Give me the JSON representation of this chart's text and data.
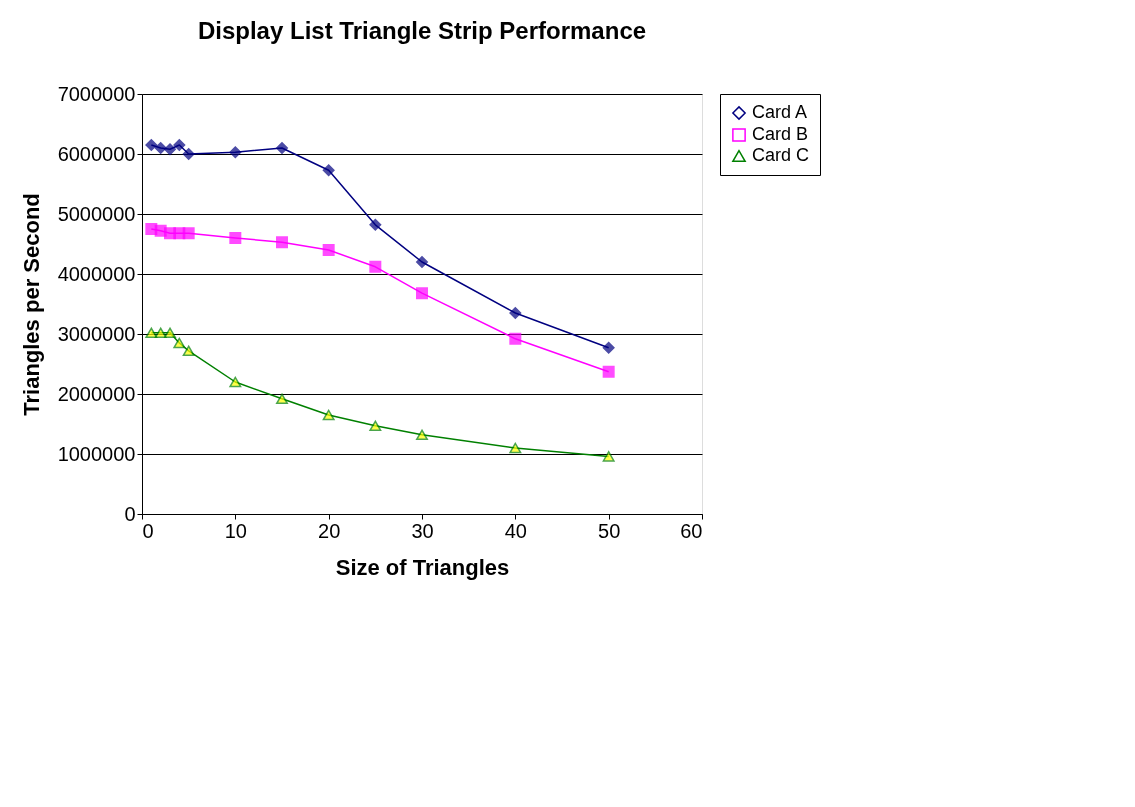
{
  "chart_data": {
    "type": "line",
    "title": "Display List Triangle Strip Performance",
    "xlabel": "Size of Triangles",
    "ylabel": "Triangles per Second",
    "x": [
      1,
      2,
      3,
      4,
      5,
      10,
      15,
      20,
      25,
      30,
      40,
      50
    ],
    "series": [
      {
        "name": "Card A",
        "color": "#000080",
        "marker": "diamond",
        "values": [
          6150000,
          6100000,
          6080000,
          6150000,
          6000000,
          6030000,
          6100000,
          5730000,
          4820000,
          4200000,
          3350000,
          2770000
        ]
      },
      {
        "name": "Card B",
        "color": "#ff00ff",
        "marker": "square",
        "values": [
          4750000,
          4720000,
          4680000,
          4680000,
          4680000,
          4600000,
          4530000,
          4400000,
          4120000,
          3680000,
          2920000,
          2370000
        ]
      },
      {
        "name": "Card C",
        "color": "#008000",
        "marker": "triangle",
        "values": [
          3020000,
          3020000,
          3020000,
          2850000,
          2720000,
          2200000,
          1920000,
          1650000,
          1470000,
          1320000,
          1100000,
          960000
        ]
      }
    ],
    "xlim": [
      0,
      60
    ],
    "xticks": [
      0,
      10,
      20,
      30,
      40,
      50,
      60
    ],
    "ylim": [
      0,
      7000000
    ],
    "yticks": [
      0,
      1000000,
      2000000,
      3000000,
      4000000,
      5000000,
      6000000,
      7000000
    ],
    "grid": "y",
    "legend": "right",
    "line_style": "solid"
  }
}
